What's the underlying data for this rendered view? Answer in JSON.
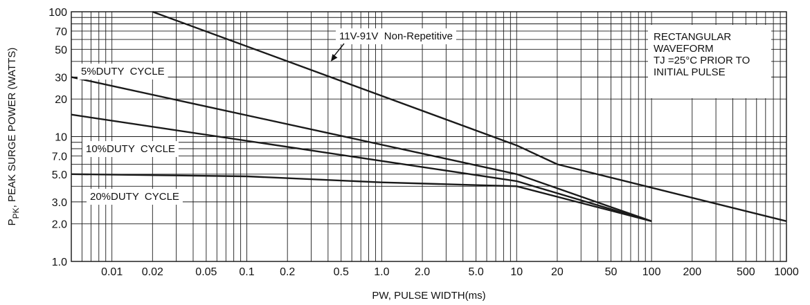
{
  "chart_data": {
    "type": "line",
    "xlabel": "PW, PULSE WIDTH(ms)",
    "ylabel": "P",
    "ylabel_sub": "PK",
    "ylabel_rest": ", PEAK SURGE POWER (WATTS)",
    "x_scale": "log",
    "y_scale": "log",
    "xlim": [
      0.005,
      1000
    ],
    "ylim": [
      1,
      100
    ],
    "grid": true,
    "x_ticks": [
      {
        "value": 0.01,
        "label": "0.01"
      },
      {
        "value": 0.02,
        "label": "0.02"
      },
      {
        "value": 0.05,
        "label": "0.05"
      },
      {
        "value": 0.1,
        "label": "0.1"
      },
      {
        "value": 0.2,
        "label": "0.2"
      },
      {
        "value": 0.5,
        "label": "0.5"
      },
      {
        "value": 1,
        "label": "1.0"
      },
      {
        "value": 2,
        "label": "2.0"
      },
      {
        "value": 5,
        "label": "5.0"
      },
      {
        "value": 10,
        "label": "10"
      },
      {
        "value": 20,
        "label": "20"
      },
      {
        "value": 50,
        "label": "50"
      },
      {
        "value": 100,
        "label": "100"
      },
      {
        "value": 200,
        "label": "200"
      },
      {
        "value": 500,
        "label": "500"
      },
      {
        "value": 1000,
        "label": "1000"
      }
    ],
    "y_ticks": [
      {
        "value": 1,
        "label": "1.0"
      },
      {
        "value": 2,
        "label": "2.0"
      },
      {
        "value": 3,
        "label": "3.0"
      },
      {
        "value": 5,
        "label": "5.0"
      },
      {
        "value": 7,
        "label": "7.0"
      },
      {
        "value": 10,
        "label": "10"
      },
      {
        "value": 20,
        "label": "20"
      },
      {
        "value": 30,
        "label": "30"
      },
      {
        "value": 50,
        "label": "50"
      },
      {
        "value": 70,
        "label": "70"
      },
      {
        "value": 100,
        "label": "100"
      }
    ],
    "series": [
      {
        "name": "11V-91V  Non-Repetitive",
        "x": [
          0.02,
          10,
          20,
          1000
        ],
        "y": [
          100,
          8.5,
          6,
          2.1
        ]
      },
      {
        "name": "5%DUTY  CYCLE",
        "x": [
          0.005,
          10,
          100
        ],
        "y": [
          30,
          5,
          2.1
        ]
      },
      {
        "name": "10%DUTY  CYCLE",
        "x": [
          0.005,
          10,
          100
        ],
        "y": [
          15,
          4.4,
          2.1
        ]
      },
      {
        "name": "20%DUTY  CYCLE",
        "x": [
          0.005,
          0.1,
          1,
          10,
          100
        ],
        "y": [
          5,
          4.8,
          4.3,
          4,
          2.1
        ]
      }
    ],
    "annotations": [
      {
        "lines": [
          "RECTANGULAR",
          "WAVEFORM",
          "TJ =25°C PRIOR TO",
          "INITIAL PULSE"
        ]
      }
    ]
  }
}
